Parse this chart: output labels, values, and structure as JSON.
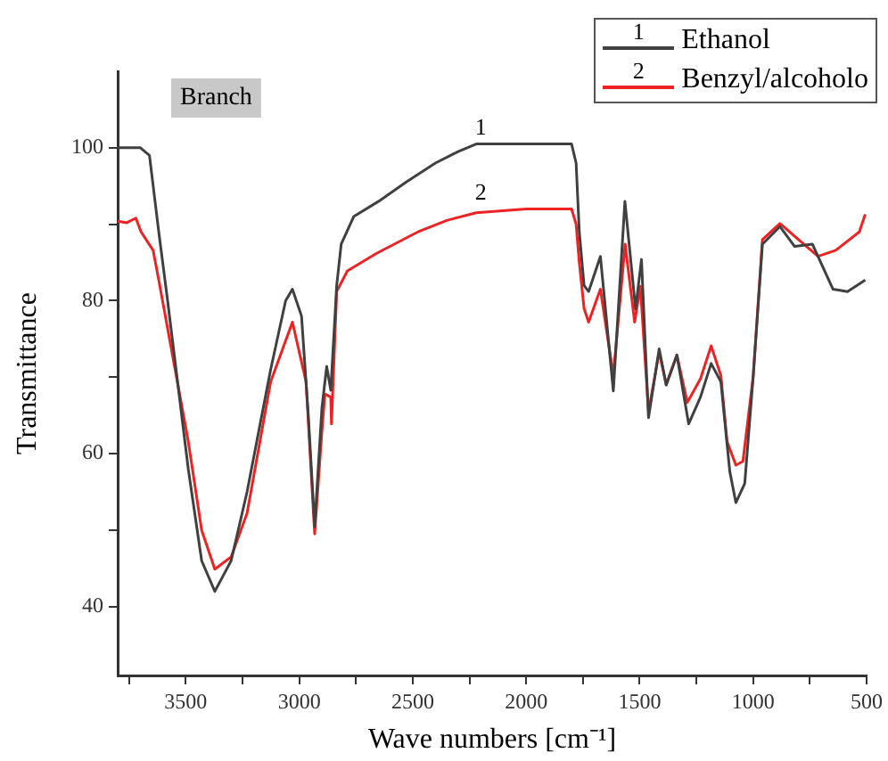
{
  "chart_data": {
    "type": "line",
    "xlabel": "Wave numbers [cm⁻¹]",
    "ylabel": "Transmittance",
    "xlim": [
      3800,
      500
    ],
    "xticks": [
      {
        "value": 3750,
        "label": null
      },
      3500,
      {
        "value": 3250,
        "label": null
      },
      3000,
      {
        "value": 2750,
        "label": null
      },
      2500,
      {
        "value": 2250,
        "label": null
      },
      2000,
      {
        "value": 1750,
        "label": null
      },
      1500,
      {
        "value": 1250,
        "label": null
      },
      1000,
      {
        "value": 750,
        "label": null
      },
      500
    ],
    "ylim": [
      31,
      110
    ],
    "yticks": [
      40,
      {
        "value": 50,
        "label": null
      },
      60,
      {
        "value": 70,
        "label": null
      },
      80,
      {
        "value": 90,
        "label": null
      },
      100
    ],
    "grid": false,
    "legend": "top right",
    "marker": "none",
    "line_style": "solid",
    "annotations": [
      "Branch",
      {
        "text": "1",
        "x": 2200,
        "y": 101
      },
      {
        "text": "2",
        "x": 2200,
        "y": 92.5
      }
    ],
    "series": [
      {
        "name": "Ethanol",
        "color": "#404040",
        "x": [
          3800,
          3700,
          3660,
          3619,
          3580,
          3489,
          3430,
          3372,
          3300,
          3230,
          3126,
          3060,
          3030,
          2990,
          2960,
          2932,
          2900,
          2879,
          2861,
          2835,
          2815,
          2760,
          2650,
          2530,
          2400,
          2300,
          2220,
          2100,
          1950,
          1800,
          1780,
          1766,
          1745,
          1725,
          1673,
          1616,
          1565,
          1518,
          1492,
          1461,
          1414,
          1383,
          1336,
          1284,
          1232,
          1185,
          1142,
          1103,
          1076,
          1037,
          1000,
          959,
          882,
          817,
          739,
          648,
          584,
          506
        ],
        "values": [
          100,
          100,
          99,
          89,
          80,
          58,
          46,
          42,
          46,
          55,
          71,
          80,
          81.5,
          78,
          65,
          50.5,
          66,
          71.4,
          68.3,
          82,
          87.4,
          91,
          93,
          95.5,
          98,
          99.5,
          100.5,
          100.5,
          100.5,
          100.5,
          98,
          89,
          82,
          81.2,
          85.8,
          68.2,
          93,
          78.9,
          85.4,
          64.7,
          73.7,
          69,
          72.9,
          63.9,
          67.4,
          71.8,
          69.4,
          57.7,
          53.6,
          56.1,
          70,
          87.4,
          89.7,
          87.1,
          87.4,
          81.5,
          81.2,
          82.7
        ]
      },
      {
        "name": "Benzyl/alcoholo",
        "color": "#ee2222",
        "x": [
          3800,
          3760,
          3720,
          3697,
          3644,
          3619,
          3489,
          3430,
          3372,
          3300,
          3230,
          3126,
          3030,
          2970,
          2932,
          2900,
          2887,
          2861,
          2858,
          2835,
          2788,
          2659,
          2477,
          2350,
          2220,
          2000,
          1800,
          1780,
          1766,
          1745,
          1725,
          1673,
          1616,
          1564,
          1522,
          1497,
          1461,
          1414,
          1383,
          1336,
          1290,
          1232,
          1185,
          1142,
          1115,
          1076,
          1045,
          1000,
          959,
          882,
          800,
          714,
          636,
          532,
          506
        ],
        "values": [
          90.4,
          90.2,
          90.8,
          89,
          86.6,
          82.7,
          61.6,
          50,
          44.9,
          46.5,
          52.2,
          69.4,
          77.2,
          69.4,
          49.5,
          63,
          67.8,
          67.4,
          63.9,
          81.2,
          83.9,
          86.2,
          89,
          90.5,
          91.5,
          92,
          92,
          90,
          85,
          79,
          77.2,
          81.5,
          70.2,
          87.4,
          77.2,
          81.9,
          65.5,
          73.3,
          69,
          72.9,
          66.7,
          69.8,
          74.1,
          70.2,
          61.6,
          58.5,
          59,
          70,
          88,
          90.1,
          88,
          85.8,
          86.6,
          89,
          91.3
        ]
      }
    ]
  }
}
